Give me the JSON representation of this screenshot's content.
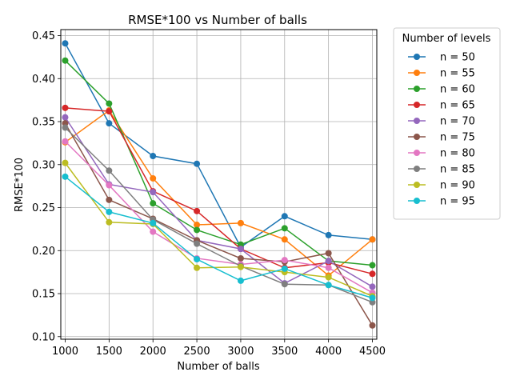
{
  "chart_data": {
    "type": "line",
    "title": "RMSE*100 vs Number of balls",
    "xlabel": "Number of balls",
    "ylabel": "RMSE*100",
    "x": [
      1000,
      1500,
      2000,
      2500,
      3000,
      3500,
      4000,
      4500
    ],
    "xlim": [
      950,
      4550
    ],
    "ylim": [
      0.097,
      0.457
    ],
    "xticks": [
      "1000",
      "1500",
      "2000",
      "2500",
      "3000",
      "3500",
      "4000",
      "4500"
    ],
    "yticks": [
      "0.10",
      "0.15",
      "0.20",
      "0.25",
      "0.30",
      "0.35",
      "0.40",
      "0.45"
    ],
    "grid": true,
    "legend_title": "Number of levels",
    "legend_placement": "outside-right",
    "series": [
      {
        "name": "n = 50",
        "color": "#1f77b4",
        "values": [
          0.441,
          0.348,
          0.31,
          0.301,
          0.204,
          0.24,
          0.218,
          0.213
        ]
      },
      {
        "name": "n = 55",
        "color": "#ff7f0e",
        "values": [
          0.326,
          0.363,
          0.284,
          0.23,
          0.232,
          0.213,
          0.171,
          0.213
        ]
      },
      {
        "name": "n = 60",
        "color": "#2ca02c",
        "values": [
          0.421,
          0.371,
          0.255,
          0.224,
          0.207,
          0.226,
          0.188,
          0.183
        ]
      },
      {
        "name": "n = 65",
        "color": "#d62728",
        "values": [
          0.366,
          0.362,
          0.269,
          0.246,
          0.202,
          0.18,
          0.186,
          0.173
        ]
      },
      {
        "name": "n = 70",
        "color": "#9467bd",
        "values": [
          0.355,
          0.277,
          0.268,
          0.212,
          0.202,
          0.162,
          0.188,
          0.158
        ]
      },
      {
        "name": "n = 75",
        "color": "#8c564b",
        "values": [
          0.348,
          0.259,
          0.237,
          0.212,
          0.191,
          0.187,
          0.197,
          0.113
        ]
      },
      {
        "name": "n = 80",
        "color": "#e377c2",
        "values": [
          0.327,
          0.276,
          0.222,
          0.191,
          0.184,
          0.189,
          0.18,
          0.151
        ]
      },
      {
        "name": "n = 85",
        "color": "#7f7f7f",
        "values": [
          0.343,
          0.293,
          0.236,
          0.208,
          0.182,
          0.161,
          0.16,
          0.14
        ]
      },
      {
        "name": "n = 90",
        "color": "#bcbd22",
        "values": [
          0.302,
          0.233,
          0.231,
          0.18,
          0.181,
          0.175,
          0.169,
          0.147
        ]
      },
      {
        "name": "n = 95",
        "color": "#17becf",
        "values": [
          0.286,
          0.245,
          0.232,
          0.19,
          0.165,
          0.179,
          0.16,
          0.145
        ]
      }
    ]
  }
}
